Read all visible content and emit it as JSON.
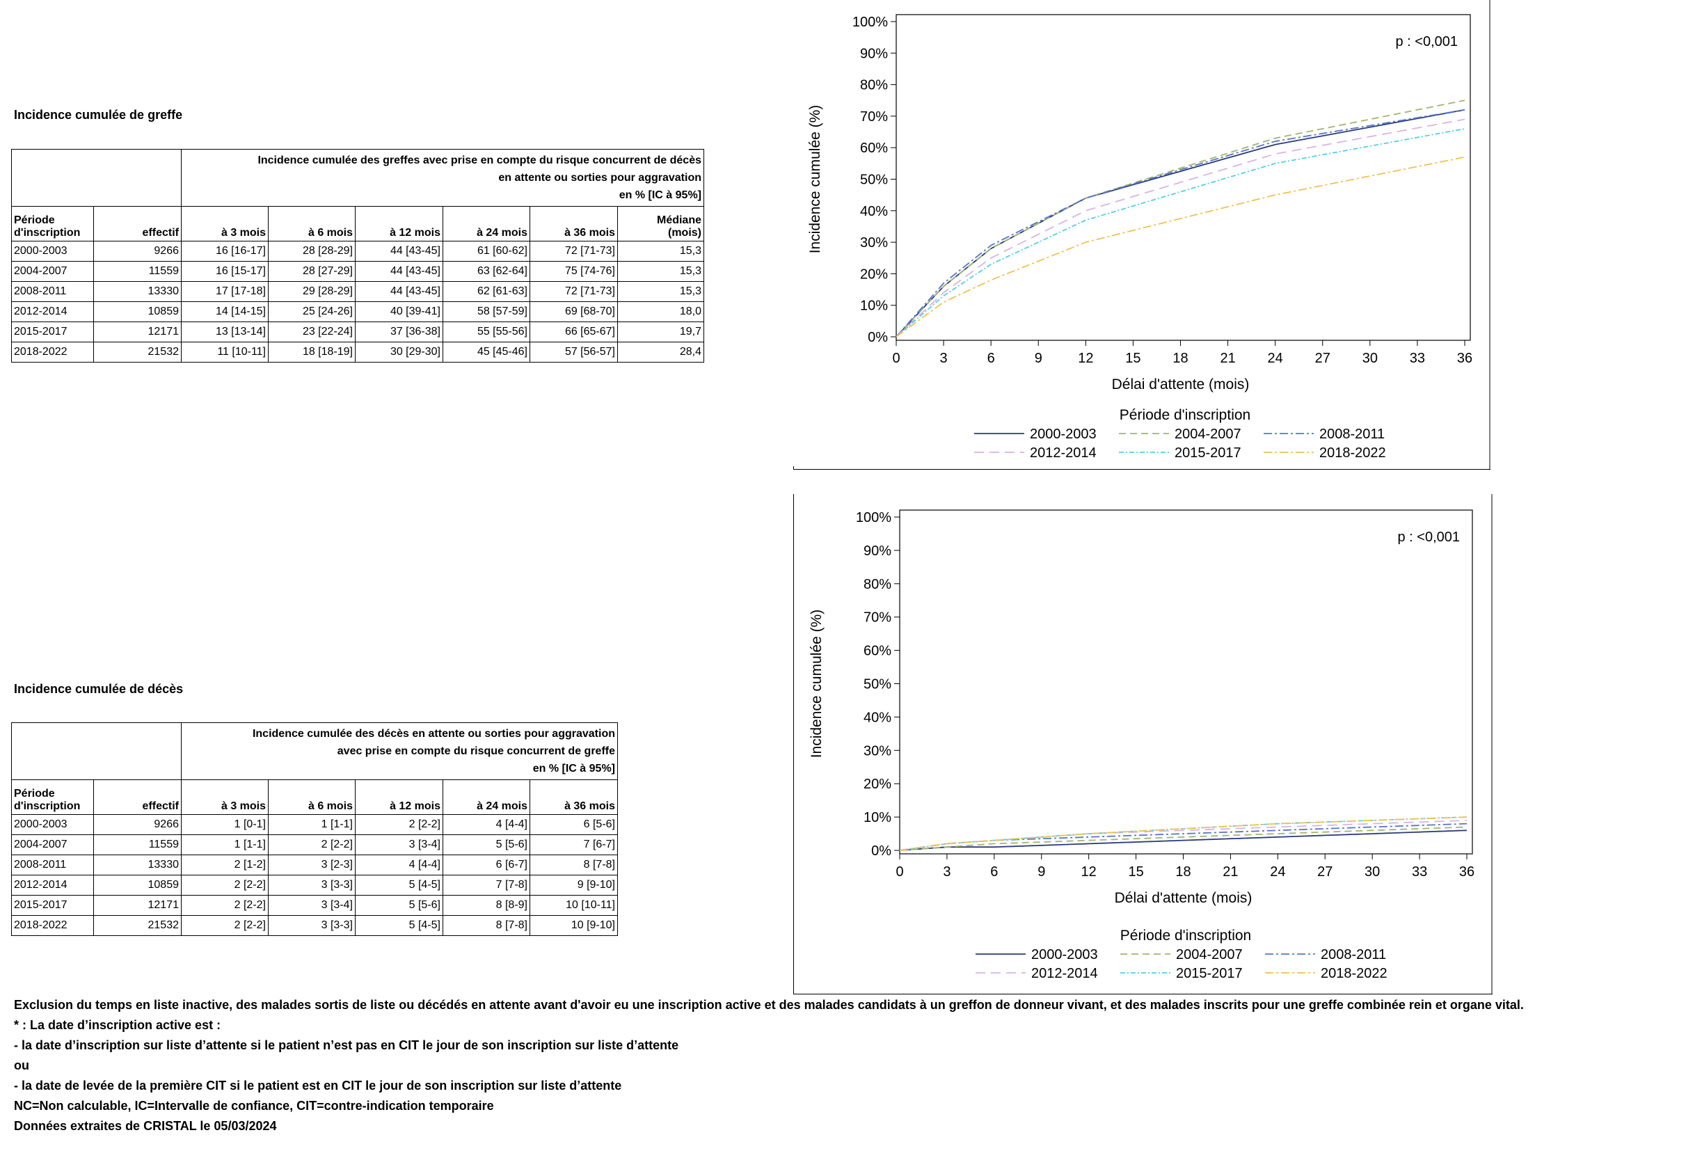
{
  "greffe": {
    "section_title": "Incidence cumulée de greffe",
    "header_lines": [
      "Incidence cumulée des greffes avec prise en compte du risque concurrent de décès",
      "en attente ou sorties pour aggravation",
      "en % [IC à 95%]"
    ],
    "col_period": [
      "Période",
      "d'inscription"
    ],
    "col_effectif": "effectif",
    "col_months": [
      "à 3 mois",
      "à 6 mois",
      "à 12 mois",
      "à 24 mois",
      "à 36 mois"
    ],
    "col_median": [
      "Médiane",
      "(mois)"
    ],
    "rows": [
      [
        "2000-2003",
        "9266",
        "16 [16-17]",
        "28 [28-29]",
        "44 [43-45]",
        "61 [60-62]",
        "72 [71-73]",
        "15,3"
      ],
      [
        "2004-2007",
        "11559",
        "16 [15-17]",
        "28 [27-29]",
        "44 [43-45]",
        "63 [62-64]",
        "75 [74-76]",
        "15,3"
      ],
      [
        "2008-2011",
        "13330",
        "17 [17-18]",
        "29 [28-29]",
        "44 [43-45]",
        "62 [61-63]",
        "72 [71-73]",
        "15,3"
      ],
      [
        "2012-2014",
        "10859",
        "14 [14-15]",
        "25 [24-26]",
        "40 [39-41]",
        "58 [57-59]",
        "69 [68-70]",
        "18,0"
      ],
      [
        "2015-2017",
        "12171",
        "13 [13-14]",
        "23 [22-24]",
        "37 [36-38]",
        "55 [55-56]",
        "66 [65-67]",
        "19,7"
      ],
      [
        "2018-2022",
        "21532",
        "11 [10-11]",
        "18 [18-19]",
        "30 [29-30]",
        "45 [45-46]",
        "57 [56-57]",
        "28,4"
      ]
    ]
  },
  "deces": {
    "section_title": "Incidence cumulée de décès",
    "header_lines": [
      "Incidence cumulée des décès en attente ou sorties pour aggravation",
      "avec prise en compte du risque concurrent de greffe",
      "en % [IC à 95%]"
    ],
    "col_period": [
      "Période",
      "d'inscription"
    ],
    "col_effectif": "effectif",
    "col_months": [
      "à 3 mois",
      "à 6 mois",
      "à 12 mois",
      "à 24 mois",
      "à 36 mois"
    ],
    "rows": [
      [
        "2000-2003",
        "9266",
        "1 [0-1]",
        "1 [1-1]",
        "2 [2-2]",
        "4 [4-4]",
        "6 [5-6]"
      ],
      [
        "2004-2007",
        "11559",
        "1 [1-1]",
        "2 [2-2]",
        "3 [3-4]",
        "5 [5-6]",
        "7 [6-7]"
      ],
      [
        "2008-2011",
        "13330",
        "2 [1-2]",
        "3 [2-3]",
        "4 [4-4]",
        "6 [6-7]",
        "8 [7-8]"
      ],
      [
        "2012-2014",
        "10859",
        "2 [2-2]",
        "3 [3-3]",
        "5 [4-5]",
        "7 [7-8]",
        "9 [9-10]"
      ],
      [
        "2015-2017",
        "12171",
        "2 [2-2]",
        "3 [3-4]",
        "5 [5-6]",
        "8 [8-9]",
        "10 [10-11]"
      ],
      [
        "2018-2022",
        "21532",
        "2 [2-2]",
        "3 [3-3]",
        "5 [4-5]",
        "8 [7-8]",
        "10 [9-10]"
      ]
    ]
  },
  "notes": [
    "Exclusion du temps en liste inactive,  des malades sortis de liste ou décédés en attente avant d'avoir eu une inscription active  et des malades candidats à un greffon de donneur vivant, et des malades inscrits pour une greffe combinée rein et organe vital.",
    "* : La date d’inscription active est :",
    "- la date d’inscription sur liste d’attente si le patient n’est pas en CIT le jour de son inscription sur liste d’attente",
    "ou",
    "- la date de levée de la première CIT si le patient est en CIT le jour de son inscription sur liste d’attente",
    "NC=Non calculable, IC=Intervalle de confiance, CIT=contre-indication temporaire",
    "Données extraites de CRISTAL le 05/03/2024"
  ],
  "chart_data": [
    {
      "type": "line",
      "annotation": "p : <0,001",
      "xlabel": "Délai d'attente (mois)",
      "ylabel": "Incidence cumulée (%)",
      "xlim": [
        0,
        36
      ],
      "ylim": [
        0,
        100
      ],
      "xticks": [
        "0",
        "3",
        "6",
        "9",
        "12",
        "15",
        "18",
        "21",
        "24",
        "27",
        "30",
        "33",
        "36"
      ],
      "yticks": [
        "0%",
        "10%",
        "20%",
        "30%",
        "40%",
        "50%",
        "60%",
        "70%",
        "80%",
        "90%",
        "100%"
      ],
      "legend_title": "Période d'inscription",
      "legend_position": "bottom",
      "grid": false,
      "x": [
        0,
        3,
        6,
        12,
        24,
        36
      ],
      "series": [
        {
          "name": "2000-2003",
          "color": "#2b3a7a",
          "dash": "",
          "values": [
            0,
            16,
            28,
            44,
            61,
            72
          ]
        },
        {
          "name": "2004-2007",
          "color": "#9fb56a",
          "dash": "10,6",
          "values": [
            0,
            16,
            28,
            44,
            63,
            75
          ]
        },
        {
          "name": "2008-2011",
          "color": "#5577c8",
          "dash": "12,4,3,4",
          "values": [
            0,
            17,
            29,
            44,
            62,
            72
          ]
        },
        {
          "name": "2012-2014",
          "color": "#d8b4e2",
          "dash": "14,8",
          "values": [
            0,
            14,
            25,
            40,
            58,
            69
          ]
        },
        {
          "name": "2015-2017",
          "color": "#4fd0e8",
          "dash": "7,3,2,3",
          "values": [
            0,
            13,
            23,
            37,
            55,
            66
          ]
        },
        {
          "name": "2018-2022",
          "color": "#f2c14e",
          "dash": "12,4,3,4",
          "values": [
            0,
            11,
            18,
            30,
            45,
            57
          ]
        }
      ]
    },
    {
      "type": "line",
      "annotation": "p : <0,001",
      "xlabel": "Délai d'attente (mois)",
      "ylabel": "Incidence cumulée (%)",
      "xlim": [
        0,
        36
      ],
      "ylim": [
        0,
        100
      ],
      "xticks": [
        "0",
        "3",
        "6",
        "9",
        "12",
        "15",
        "18",
        "21",
        "24",
        "27",
        "30",
        "33",
        "36"
      ],
      "yticks": [
        "0%",
        "10%",
        "20%",
        "30%",
        "40%",
        "50%",
        "60%",
        "70%",
        "80%",
        "90%",
        "100%"
      ],
      "legend_title": "Période d'inscription",
      "legend_position": "bottom",
      "grid": false,
      "x": [
        0,
        3,
        6,
        12,
        24,
        36
      ],
      "series": [
        {
          "name": "2000-2003",
          "color": "#2b3a7a",
          "dash": "",
          "values": [
            0,
            1,
            1,
            2,
            4,
            6
          ]
        },
        {
          "name": "2004-2007",
          "color": "#9fb56a",
          "dash": "10,6",
          "values": [
            0,
            1,
            2,
            3,
            5,
            7
          ]
        },
        {
          "name": "2008-2011",
          "color": "#5577c8",
          "dash": "12,4,3,4",
          "values": [
            0,
            2,
            3,
            4,
            6,
            8
          ]
        },
        {
          "name": "2012-2014",
          "color": "#d8b4e2",
          "dash": "14,8",
          "values": [
            0,
            2,
            3,
            5,
            7,
            9
          ]
        },
        {
          "name": "2015-2017",
          "color": "#4fd0e8",
          "dash": "7,3,2,3",
          "values": [
            0,
            2,
            3,
            5,
            8,
            10
          ]
        },
        {
          "name": "2018-2022",
          "color": "#f2c14e",
          "dash": "12,4,3,4",
          "values": [
            0,
            2,
            3,
            5,
            8,
            10
          ]
        }
      ]
    }
  ]
}
